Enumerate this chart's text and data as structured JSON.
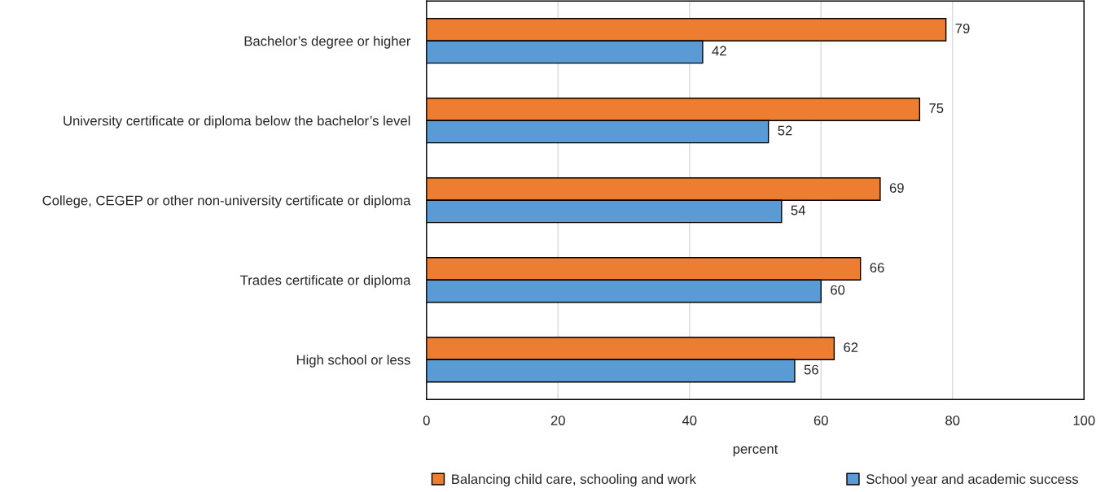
{
  "chart_data": {
    "type": "bar",
    "orientation": "horizontal",
    "xlabel": "percent",
    "categories": [
      "Bachelor’s degree or higher",
      "University certificate or diploma below the bachelor’s level",
      "College, CEGEP or other non-university certificate or diploma",
      "Trades certificate or diploma",
      "High school or less"
    ],
    "series": [
      {
        "name": "Balancing child care, schooling and work",
        "color": "#ed7d31",
        "values": [
          79,
          75,
          69,
          66,
          62
        ]
      },
      {
        "name": "School year and academic success",
        "color": "#5b9bd5",
        "values": [
          42,
          52,
          54,
          60,
          56
        ]
      }
    ],
    "xlim": [
      0,
      100
    ],
    "xticks": [
      0,
      20,
      40,
      60,
      80,
      100
    ],
    "grid": "x",
    "legend": "bottom",
    "data_labels": true
  }
}
